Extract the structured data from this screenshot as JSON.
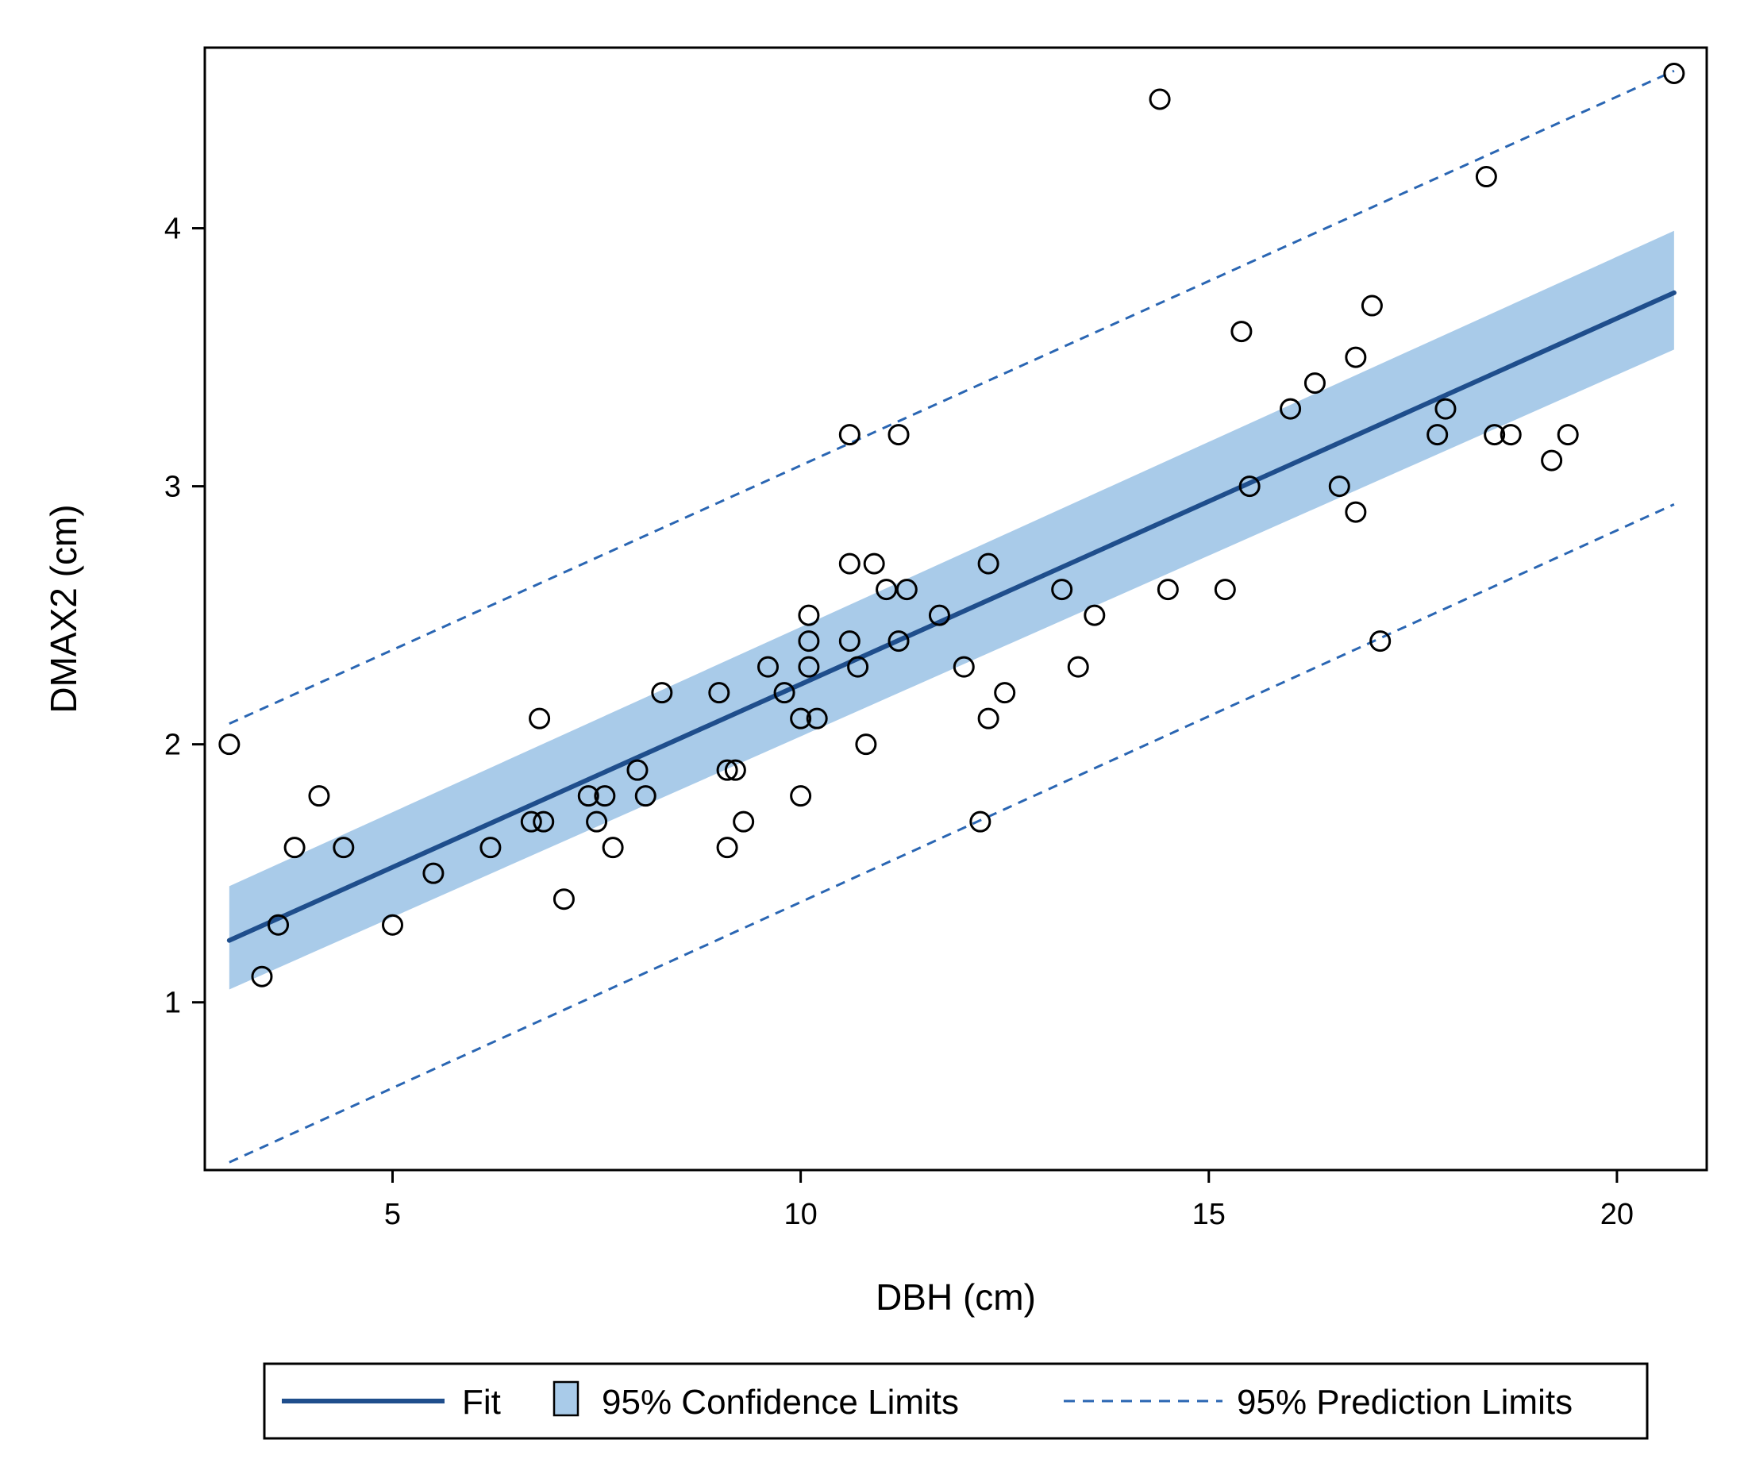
{
  "chart_data": {
    "type": "scatter",
    "xlabel": "DBH (cm)",
    "ylabel": "DMAX2 (cm)",
    "xlim": [
      2.7,
      21.1
    ],
    "ylim": [
      0.35,
      4.7
    ],
    "xticks": [
      5,
      10,
      15,
      20
    ],
    "yticks": [
      1,
      2,
      3,
      4
    ],
    "grid": false,
    "legend_position": "bottom",
    "legend": {
      "fit": "Fit",
      "confidence": "95% Confidence Limits",
      "prediction": "95% Prediction Limits"
    },
    "regression": {
      "x_start": 3.0,
      "x_end": 20.7,
      "fit": [
        1.24,
        3.75
      ],
      "confidence_lower": [
        1.05,
        3.53
      ],
      "confidence_upper": [
        1.45,
        3.99
      ],
      "prediction_lower": [
        0.38,
        2.93
      ],
      "prediction_upper": [
        2.08,
        4.61
      ]
    },
    "colors": {
      "fit": "#1f4e8c",
      "band": "#a9cbe9",
      "prediction": "#2a66b3",
      "frame": "#000000"
    },
    "points": [
      [
        3.0,
        2.0
      ],
      [
        3.4,
        1.1
      ],
      [
        3.6,
        1.3
      ],
      [
        3.8,
        1.6
      ],
      [
        4.1,
        1.8
      ],
      [
        4.4,
        1.6
      ],
      [
        5.0,
        1.3
      ],
      [
        5.5,
        1.5
      ],
      [
        6.2,
        1.6
      ],
      [
        6.7,
        1.7
      ],
      [
        6.8,
        2.1
      ],
      [
        6.85,
        1.7
      ],
      [
        7.1,
        1.4
      ],
      [
        7.4,
        1.8
      ],
      [
        7.5,
        1.7
      ],
      [
        7.6,
        1.8
      ],
      [
        7.7,
        1.6
      ],
      [
        8.0,
        1.9
      ],
      [
        8.1,
        1.8
      ],
      [
        8.3,
        2.2
      ],
      [
        9.0,
        2.2
      ],
      [
        9.1,
        1.9
      ],
      [
        9.1,
        1.6
      ],
      [
        9.2,
        1.9
      ],
      [
        9.3,
        1.7
      ],
      [
        9.6,
        2.3
      ],
      [
        9.8,
        2.2
      ],
      [
        10.0,
        2.1
      ],
      [
        10.0,
        1.8
      ],
      [
        10.1,
        2.5
      ],
      [
        10.1,
        2.4
      ],
      [
        10.1,
        2.3
      ],
      [
        10.2,
        2.1
      ],
      [
        10.6,
        3.2
      ],
      [
        10.6,
        2.7
      ],
      [
        10.6,
        2.4
      ],
      [
        10.7,
        2.3
      ],
      [
        10.8,
        2.0
      ],
      [
        10.9,
        2.7
      ],
      [
        11.05,
        2.6
      ],
      [
        11.2,
        3.2
      ],
      [
        11.2,
        2.4
      ],
      [
        11.3,
        2.6
      ],
      [
        11.7,
        2.5
      ],
      [
        12.0,
        2.3
      ],
      [
        12.2,
        1.7
      ],
      [
        12.3,
        2.7
      ],
      [
        12.3,
        2.1
      ],
      [
        12.5,
        2.2
      ],
      [
        13.2,
        2.6
      ],
      [
        13.4,
        2.3
      ],
      [
        13.6,
        2.5
      ],
      [
        14.4,
        4.5
      ],
      [
        14.5,
        2.6
      ],
      [
        15.2,
        2.6
      ],
      [
        15.4,
        3.6
      ],
      [
        15.5,
        3.0
      ],
      [
        16.0,
        3.3
      ],
      [
        16.3,
        3.4
      ],
      [
        16.6,
        3.0
      ],
      [
        16.8,
        3.5
      ],
      [
        16.8,
        2.9
      ],
      [
        17.0,
        3.7
      ],
      [
        17.1,
        2.4
      ],
      [
        17.8,
        3.2
      ],
      [
        17.9,
        3.3
      ],
      [
        18.4,
        4.2
      ],
      [
        18.5,
        3.2
      ],
      [
        18.7,
        3.2
      ],
      [
        19.2,
        3.1
      ],
      [
        19.4,
        3.2
      ],
      [
        20.7,
        4.6
      ]
    ]
  }
}
